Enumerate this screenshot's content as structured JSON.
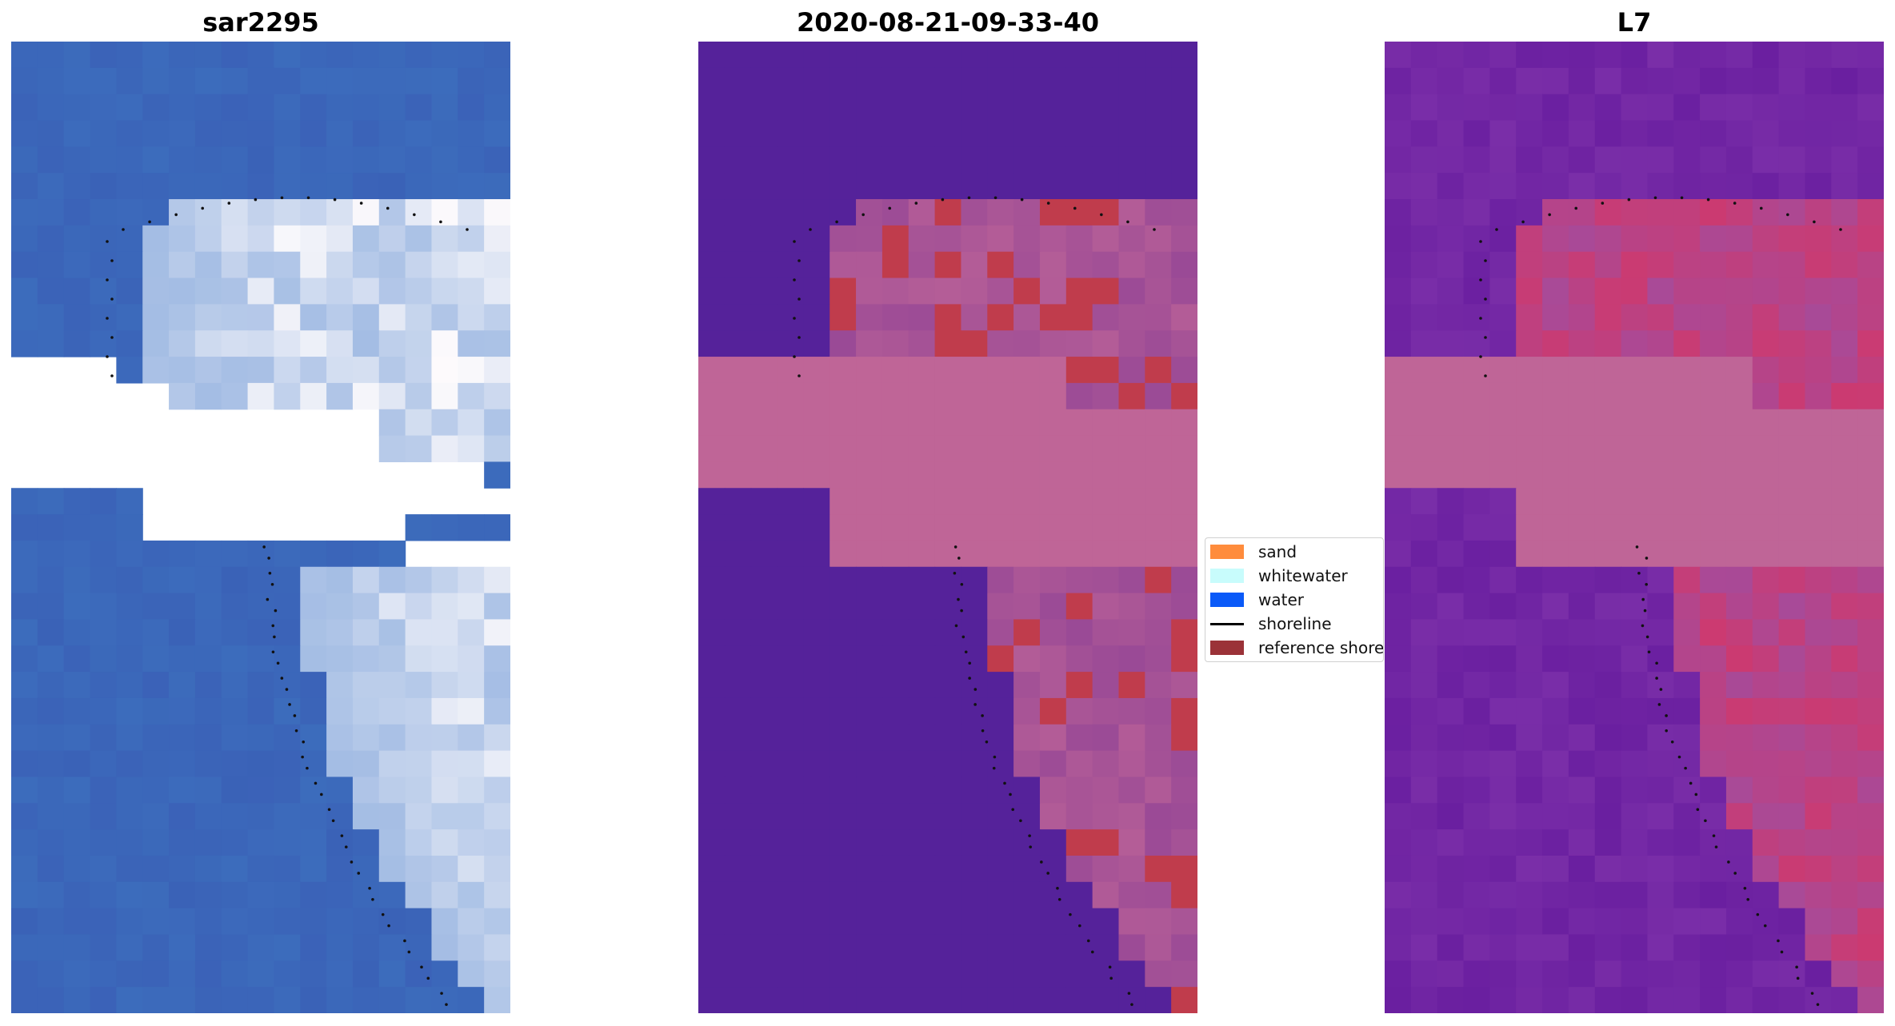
{
  "panels": [
    {
      "title": "sar2295",
      "kind": "satellite-rgb-image"
    },
    {
      "title": "2020-08-21-09-33-40",
      "kind": "classified-image"
    },
    {
      "title": "L7",
      "kind": "index-image"
    }
  ],
  "legend": {
    "items": [
      {
        "label": "sand",
        "color": "#ff8c3c"
      },
      {
        "label": "whitewater",
        "color": "#c8fcfc"
      },
      {
        "label": "water",
        "color": "#0a5af8"
      },
      {
        "label": "shoreline",
        "color": "#000000",
        "style": "line"
      },
      {
        "label": "reference shoreline",
        "color": "#9b3238"
      }
    ]
  },
  "colors": {
    "water_blue": "#3c6cbc",
    "surf_white": "#eef0f8",
    "class_water": "#55229a",
    "class_land": "#bf6597",
    "class_sand": "#c03c4c",
    "index_low": "#6a1fa0",
    "index_high": "#cc3a70"
  }
}
